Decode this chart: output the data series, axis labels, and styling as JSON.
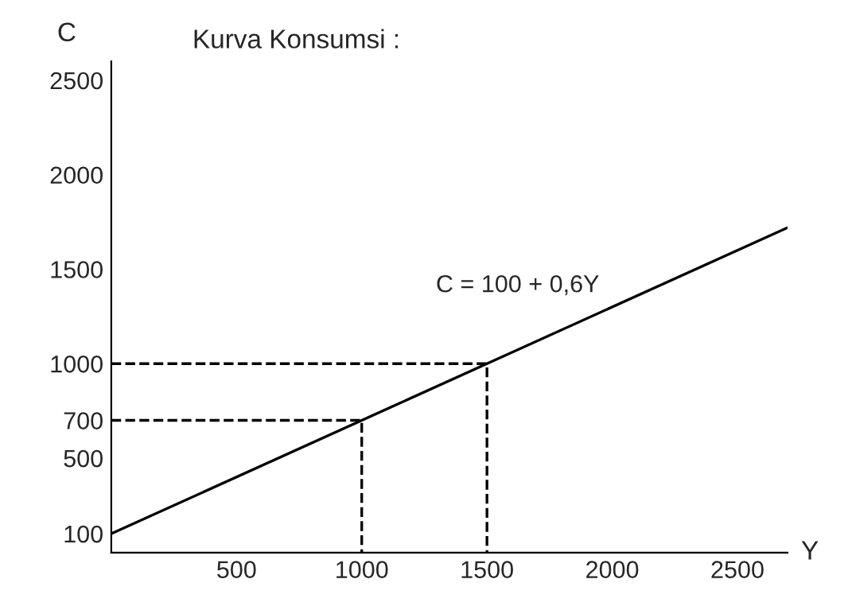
{
  "chart_data": {
    "type": "line",
    "title": "Kurva Konsumsi :",
    "xlabel": "Y",
    "ylabel": "C",
    "xlim": [
      0,
      2700
    ],
    "ylim": [
      0,
      2600
    ],
    "xticks": [
      500,
      1000,
      1500,
      2000,
      2500
    ],
    "yticks": [
      100,
      500,
      700,
      1000,
      1500,
      2000,
      2500
    ],
    "grid": false,
    "legend": false,
    "marker": "none",
    "series": [
      {
        "color": "#000000",
        "x": [
          0,
          2700
        ],
        "values": [
          100,
          1720
        ],
        "line_style": "solid"
      },
      {
        "color": "#000000",
        "x": [
          0,
          1000,
          1000
        ],
        "values": [
          700,
          700,
          0
        ],
        "line_style": "dashed"
      },
      {
        "color": "#000000",
        "x": [
          0,
          1500,
          1500
        ],
        "values": [
          1000,
          1000,
          0
        ],
        "line_style": "dashed"
      }
    ],
    "annotations": [
      "C = 100 + 0,6Y"
    ]
  }
}
